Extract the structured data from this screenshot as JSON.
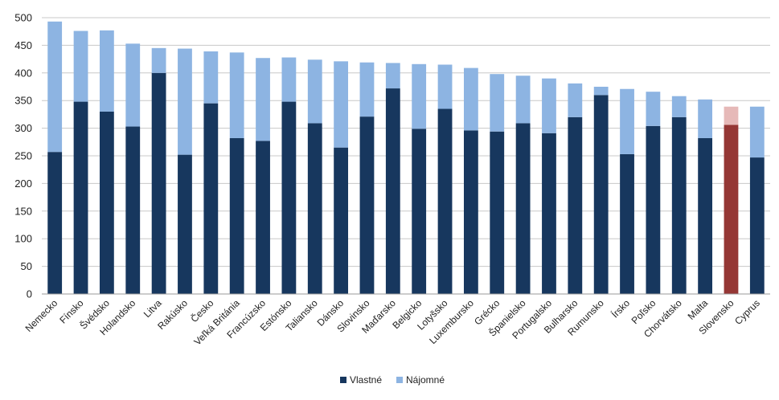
{
  "chart_data": {
    "type": "bar",
    "stacked": true,
    "categories": [
      "Nemecko",
      "Fínsko",
      "Švédsko",
      "Holandsko",
      "Litva",
      "Rakúsko",
      "Česko",
      "Veľká Británia",
      "Francúzsko",
      "Estónsko",
      "Taliansko",
      "Dánsko",
      "Slovinsko",
      "Maďarsko",
      "Belgicko",
      "Lotyšsko",
      "Luxembursko",
      "Grécko",
      "Španielsko",
      "Portugalsko",
      "Bulharsko",
      "Rumunsko",
      "Írsko",
      "Poľsko",
      "Chorvátsko",
      "Malta",
      "Slovensko",
      "Cyprus"
    ],
    "series": [
      {
        "name": "Vlastné",
        "values": [
          257,
          348,
          330,
          303,
          400,
          252,
          345,
          282,
          277,
          348,
          309,
          265,
          321,
          372,
          299,
          335,
          296,
          294,
          309,
          291,
          320,
          360,
          253,
          304,
          320,
          282,
          306,
          247
        ]
      },
      {
        "name": "Nájomné",
        "values": [
          236,
          128,
          147,
          150,
          45,
          192,
          94,
          155,
          150,
          80,
          115,
          156,
          98,
          46,
          117,
          80,
          113,
          104,
          86,
          99,
          61,
          15,
          118,
          62,
          38,
          70,
          33,
          92
        ]
      }
    ],
    "ylim": [
      0,
      500
    ],
    "yticks": [
      0,
      50,
      100,
      150,
      200,
      250,
      300,
      350,
      400,
      450,
      500
    ],
    "grid": true,
    "legend_position": "bottom",
    "colors": {
      "Vlastné": "#17375e",
      "Nájomné": "#8db4e2"
    },
    "highlight": {
      "category": "Slovensko",
      "colors": {
        "Vlastné": "#953735",
        "Nájomné": "#e6b9b8"
      }
    }
  }
}
